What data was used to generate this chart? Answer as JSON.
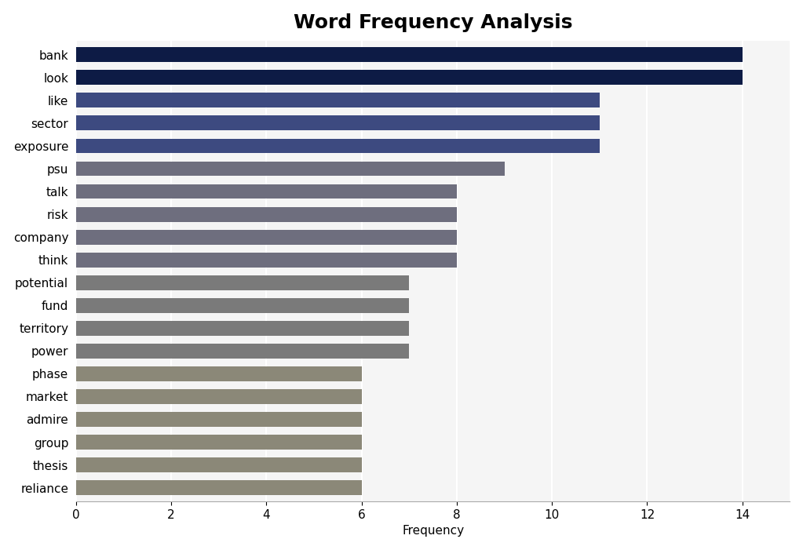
{
  "categories": [
    "reliance",
    "thesis",
    "group",
    "admire",
    "market",
    "phase",
    "power",
    "territory",
    "fund",
    "potential",
    "think",
    "company",
    "risk",
    "talk",
    "psu",
    "exposure",
    "sector",
    "like",
    "look",
    "bank"
  ],
  "values": [
    6,
    6,
    6,
    6,
    6,
    6,
    7,
    7,
    7,
    7,
    8,
    8,
    8,
    8,
    9,
    11,
    11,
    11,
    14,
    14
  ],
  "bar_colors": [
    "#8b8878",
    "#8b8878",
    "#8b8878",
    "#8b8878",
    "#8b8878",
    "#8b8878",
    "#7a7a7a",
    "#7a7a7a",
    "#7a7a7a",
    "#7a7a7a",
    "#6e6e7e",
    "#6e6e7e",
    "#6e6e7e",
    "#6e6e7e",
    "#6e6e7e",
    "#3d4a80",
    "#3d4a80",
    "#3d4a80",
    "#0d1b45",
    "#0d1b45"
  ],
  "title": "Word Frequency Analysis",
  "xlabel": "Frequency",
  "xlim": [
    0,
    15
  ],
  "title_fontsize": 18,
  "label_fontsize": 11,
  "tick_fontsize": 11,
  "background_color": "#ffffff",
  "plot_background_color": "#f5f5f5"
}
